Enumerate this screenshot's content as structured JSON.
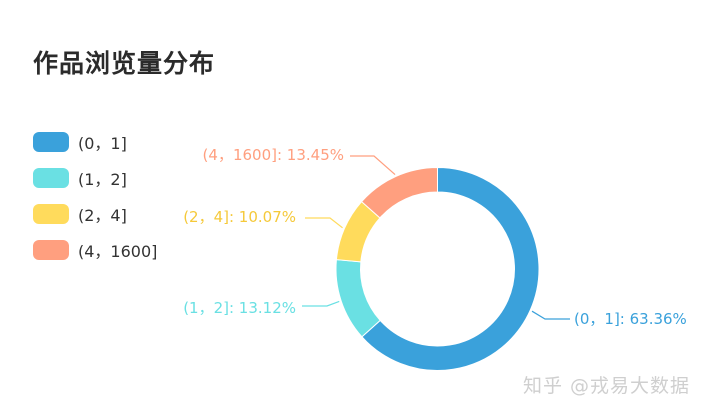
{
  "chart_data": {
    "type": "pie",
    "donut": true,
    "title": "作品浏览量分布",
    "legend_position": "left",
    "categories": [
      "(0，1]",
      "(1，2]",
      "(2，4]",
      "(4，1600]"
    ],
    "values": [
      63.36,
      13.12,
      10.07,
      13.45
    ],
    "value_labels": [
      "63.36%",
      "13.12%",
      "10.07%",
      "13.45%"
    ],
    "slice_labels": [
      "(0，1]: 63.36%",
      "(1，2]: 13.12%",
      "(2，4]: 10.07%",
      "(4，1600]: 13.45%"
    ],
    "colors": [
      "#3aa1db",
      "#6ae0e3",
      "#ffdb5c",
      "#ff9f7f"
    ]
  },
  "watermark": "知乎 @戎易大数据"
}
